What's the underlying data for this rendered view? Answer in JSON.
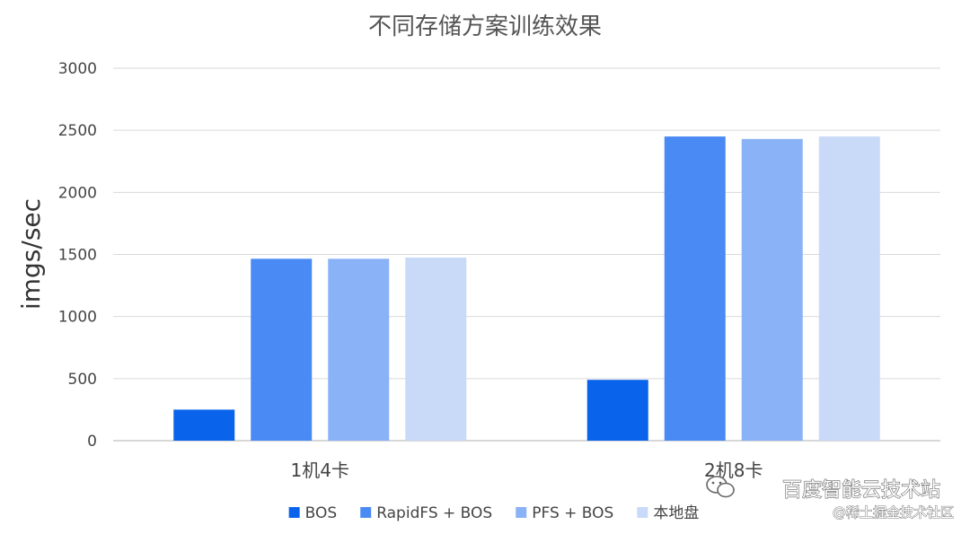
{
  "chart_data": {
    "type": "bar",
    "title": "不同存储方案训练效果",
    "xlabel": "",
    "ylabel": "imgs/sec",
    "ylim": [
      0,
      3000
    ],
    "yticks": [
      0,
      500,
      1000,
      1500,
      2000,
      2500,
      3000
    ],
    "grid": true,
    "legend_position": "bottom",
    "categories": [
      "1机4卡",
      "2机8卡"
    ],
    "series": [
      {
        "name": "BOS",
        "color": "#0a63eb",
        "values": [
          250,
          490
        ]
      },
      {
        "name": "RapidFS + BOS",
        "color": "#4a8af4",
        "values": [
          1465,
          2450
        ]
      },
      {
        "name": "PFS + BOS",
        "color": "#8ab2f6",
        "values": [
          1465,
          2430
        ]
      },
      {
        "name": "本地盘",
        "color": "#c9daf8",
        "values": [
          1475,
          2450
        ]
      }
    ]
  },
  "watermark": {
    "main": "百度智能云技术站",
    "sub": "@稀土掘金技术社区",
    "icon": "wechat-icon"
  }
}
